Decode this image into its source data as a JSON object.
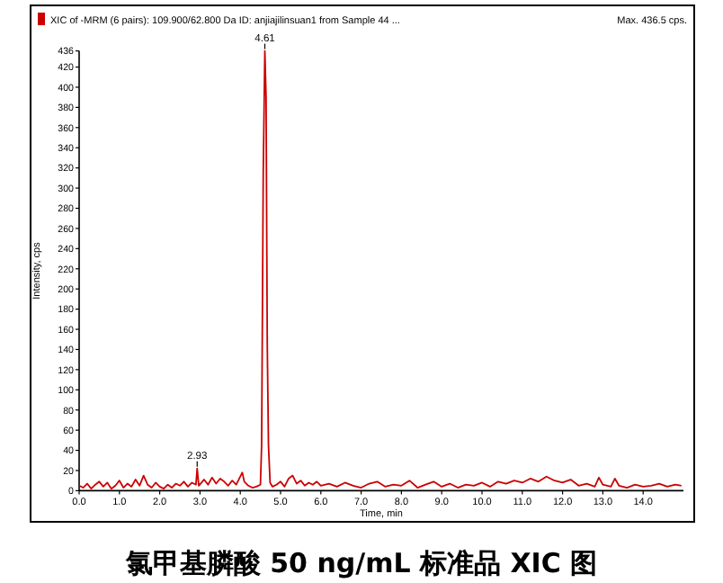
{
  "chart_data": {
    "type": "line",
    "title": "氯甲基膦酸 50 ng/mL 标准品 XIC 图",
    "xlabel": "Time, min",
    "ylabel": "Intensity, cps",
    "legend": "top left",
    "xlim": [
      0,
      15
    ],
    "ylim": [
      0,
      436
    ],
    "xticks": [
      {
        "value": 0,
        "label": "0.0"
      },
      {
        "value": 1,
        "label": "1.0"
      },
      {
        "value": 2,
        "label": "2.0"
      },
      {
        "value": 3,
        "label": "3.0"
      },
      {
        "value": 4,
        "label": "4.0"
      },
      {
        "value": 5,
        "label": "5.0"
      },
      {
        "value": 6,
        "label": "6.0"
      },
      {
        "value": 7,
        "label": "7.0"
      },
      {
        "value": 8,
        "label": "8.0"
      },
      {
        "value": 9,
        "label": "9.0"
      },
      {
        "value": 10,
        "label": "10.0"
      },
      {
        "value": 11,
        "label": "11.0"
      },
      {
        "value": 12,
        "label": "12.0"
      },
      {
        "value": 13,
        "label": "13.0"
      },
      {
        "value": 14,
        "label": "14.0"
      }
    ],
    "yticks": [
      0,
      20,
      40,
      60,
      80,
      100,
      120,
      140,
      160,
      180,
      200,
      220,
      240,
      260,
      280,
      300,
      320,
      340,
      360,
      380,
      400,
      420,
      436
    ],
    "annotations": [
      {
        "text": "4.61",
        "x": 4.61,
        "y": 436
      },
      {
        "text": "2.93",
        "x": 2.93,
        "y": 22
      },
      "Max. 436.5 cps."
    ],
    "series": [
      {
        "name": "XIC of -MRM (6 pairs): 109.900/62.800 Da ID: anjiajilinsuan1 from Sample 44 ...",
        "color": "#cc0000",
        "x": [
          0,
          0.1,
          0.2,
          0.3,
          0.4,
          0.5,
          0.6,
          0.7,
          0.8,
          0.9,
          1.0,
          1.1,
          1.2,
          1.3,
          1.4,
          1.5,
          1.6,
          1.7,
          1.8,
          1.9,
          2.0,
          2.1,
          2.2,
          2.3,
          2.4,
          2.5,
          2.6,
          2.7,
          2.8,
          2.9,
          2.93,
          2.97,
          3.1,
          3.2,
          3.3,
          3.4,
          3.5,
          3.6,
          3.7,
          3.8,
          3.9,
          4.0,
          4.05,
          4.1,
          4.2,
          4.3,
          4.4,
          4.5,
          4.53,
          4.57,
          4.61,
          4.64,
          4.67,
          4.7,
          4.74,
          4.8,
          4.9,
          5.0,
          5.1,
          5.2,
          5.3,
          5.4,
          5.5,
          5.6,
          5.7,
          5.8,
          5.9,
          6.0,
          6.2,
          6.4,
          6.6,
          6.8,
          7.0,
          7.2,
          7.4,
          7.6,
          7.8,
          8.0,
          8.2,
          8.4,
          8.6,
          8.8,
          9.0,
          9.2,
          9.4,
          9.6,
          9.8,
          10.0,
          10.2,
          10.4,
          10.6,
          10.8,
          11.0,
          11.2,
          11.4,
          11.6,
          11.8,
          12.0,
          12.2,
          12.4,
          12.6,
          12.8,
          12.9,
          13.0,
          13.2,
          13.3,
          13.4,
          13.6,
          13.8,
          14.0,
          14.2,
          14.4,
          14.6,
          14.8,
          14.95
        ],
        "values": [
          5,
          3,
          7,
          2,
          6,
          9,
          4,
          8,
          2,
          5,
          10,
          3,
          7,
          4,
          11,
          5,
          15,
          6,
          3,
          8,
          4,
          2,
          6,
          3,
          7,
          5,
          9,
          4,
          8,
          6,
          22,
          5,
          11,
          6,
          13,
          7,
          12,
          9,
          5,
          10,
          6,
          14,
          18,
          9,
          5,
          3,
          4,
          6,
          45,
          315,
          436,
          390,
          145,
          45,
          8,
          4,
          6,
          9,
          4,
          12,
          15,
          7,
          10,
          5,
          8,
          6,
          9,
          5,
          7,
          4,
          8,
          5,
          3,
          7,
          9,
          4,
          6,
          5,
          10,
          3,
          6,
          9,
          4,
          7,
          3,
          6,
          5,
          8,
          4,
          9,
          7,
          10,
          8,
          12,
          9,
          14,
          10,
          8,
          11,
          5,
          7,
          4,
          13,
          6,
          4,
          12,
          5,
          3,
          6,
          4,
          5,
          7,
          4,
          6,
          5
        ]
      }
    ]
  }
}
